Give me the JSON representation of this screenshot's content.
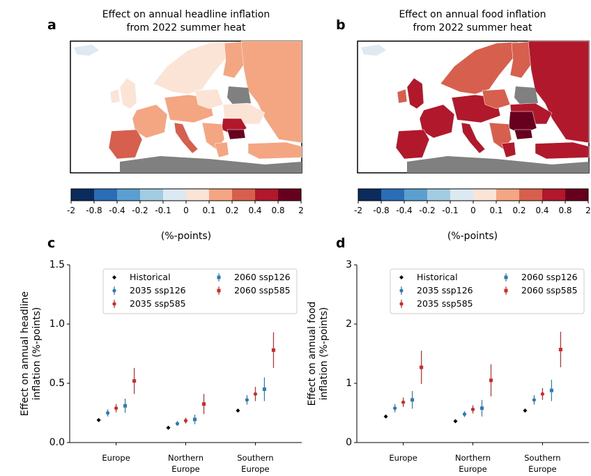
{
  "figure": {
    "panel_a": {
      "label": "a",
      "title_line1": "Effect on annual headline inflation",
      "title_line2": "from 2022 summer heat"
    },
    "panel_b": {
      "label": "b",
      "title_line1": "Effect on annual food inflation",
      "title_line2": "from 2022 summer heat"
    },
    "panel_c": {
      "label": "c"
    },
    "panel_d": {
      "label": "d"
    },
    "colorbar": {
      "ticks": [
        "-2",
        "-0.8",
        "-0.4",
        "-0.2",
        "-0.1",
        "0",
        "0.1",
        "0.2",
        "0.4",
        "0.8",
        "2"
      ],
      "colors": [
        "#0b2b5c",
        "#2a6db5",
        "#5a9fd0",
        "#a3cce3",
        "#dbe9f3",
        "#fbe3d6",
        "#f4a582",
        "#d6604d",
        "#b2182b",
        "#67001f"
      ],
      "unit_label": "(%-points)"
    },
    "map_colors": {
      "land_nodata": "#808080",
      "sea": "#ffffff",
      "non_europe": "#dfe9f2"
    }
  },
  "chart_data": [
    {
      "type": "scatter",
      "panel": "c",
      "ylabel_line1": "Effect on annual headline",
      "ylabel_line2": "inflation (%-points)",
      "ylim": [
        0,
        1.5
      ],
      "yticks": [
        "0.0",
        "0.5",
        "1.0",
        "1.5"
      ],
      "categories": [
        [
          "Europe"
        ],
        [
          "Northern",
          "Europe"
        ],
        [
          "Southern",
          "Europe"
        ]
      ],
      "legend_position": "top-right",
      "series": [
        {
          "name": "Historical",
          "color": "#000000",
          "marker": "diamond",
          "values": [
            0.19,
            0.125,
            0.27
          ],
          "err": [
            0,
            0,
            0
          ]
        },
        {
          "name": "2035 ssp126",
          "color": "#2b7bba",
          "marker": "circle",
          "values": [
            0.25,
            0.16,
            0.36
          ],
          "err": [
            0.03,
            0.02,
            0.04
          ]
        },
        {
          "name": "2035 ssp585",
          "color": "#d62728",
          "marker": "circle",
          "values": [
            0.29,
            0.185,
            0.41
          ],
          "err": [
            0.035,
            0.025,
            0.06
          ]
        },
        {
          "name": "2060 ssp126",
          "color": "#2b7bba",
          "marker": "square",
          "values": [
            0.31,
            0.195,
            0.45
          ],
          "err": [
            0.06,
            0.04,
            0.1
          ]
        },
        {
          "name": "2060 ssp585",
          "color": "#d62728",
          "marker": "square",
          "values": [
            0.52,
            0.325,
            0.78
          ],
          "err": [
            0.11,
            0.085,
            0.15
          ]
        }
      ]
    },
    {
      "type": "scatter",
      "panel": "d",
      "ylabel_line1": "Effect on annual food",
      "ylabel_line2": "inflation (%-points)",
      "ylim": [
        0,
        3
      ],
      "yticks": [
        "0",
        "1",
        "2",
        "3"
      ],
      "categories": [
        [
          "Europe"
        ],
        [
          "Northern",
          "Europe"
        ],
        [
          "Southern",
          "Europe"
        ]
      ],
      "legend_position": "top-right",
      "series": [
        {
          "name": "Historical",
          "color": "#000000",
          "marker": "diamond",
          "values": [
            0.44,
            0.36,
            0.54
          ],
          "err": [
            0,
            0,
            0
          ]
        },
        {
          "name": "2035 ssp126",
          "color": "#2b7bba",
          "marker": "circle",
          "values": [
            0.58,
            0.48,
            0.72
          ],
          "err": [
            0.07,
            0.05,
            0.08
          ]
        },
        {
          "name": "2035 ssp585",
          "color": "#d62728",
          "marker": "circle",
          "values": [
            0.68,
            0.56,
            0.82
          ],
          "err": [
            0.08,
            0.07,
            0.1
          ]
        },
        {
          "name": "2060 ssp126",
          "color": "#2b7bba",
          "marker": "square",
          "values": [
            0.72,
            0.58,
            0.88
          ],
          "err": [
            0.15,
            0.14,
            0.18
          ]
        },
        {
          "name": "2060 ssp585",
          "color": "#d62728",
          "marker": "square",
          "values": [
            1.27,
            1.05,
            1.57
          ],
          "err": [
            0.28,
            0.27,
            0.3
          ]
        }
      ]
    }
  ]
}
